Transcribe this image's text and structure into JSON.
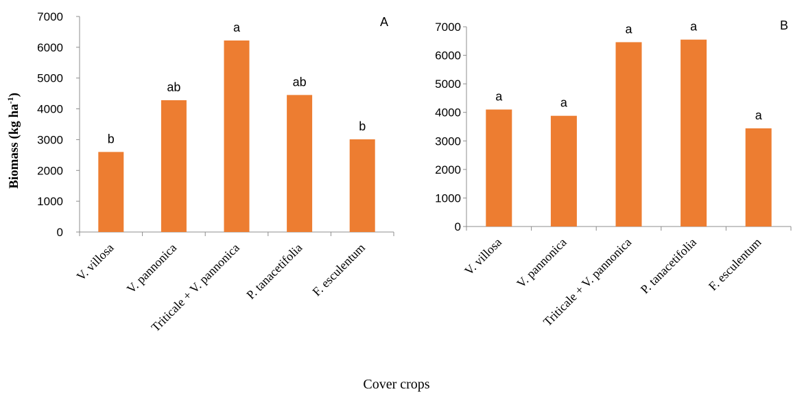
{
  "chart_data": [
    {
      "type": "bar",
      "panel": "A",
      "categories": [
        "V. villosa",
        "V. pannonica",
        "Triticale + V. pannonica",
        "P. tanacetifolia",
        "F. esculentum"
      ],
      "values": [
        2600,
        4280,
        6220,
        4450,
        3010
      ],
      "letters": [
        "b",
        "ab",
        "a",
        "ab",
        "b"
      ],
      "ylim": [
        0,
        7000
      ],
      "yticks": [
        0,
        1000,
        2000,
        3000,
        4000,
        5000,
        6000,
        7000
      ],
      "ylabel_main": "Biomass (kg ha",
      "ylabel_sup": "-1",
      "ylabel_end": ")",
      "bar_color": "#ED7D31",
      "grid": false
    },
    {
      "type": "bar",
      "panel": "B",
      "categories": [
        "V. villosa",
        "V. pannonica",
        "Triticale + V. pannonica",
        "P. tanacetifolia",
        "F. esculentum"
      ],
      "values": [
        4100,
        3880,
        6460,
        6550,
        3440
      ],
      "letters": [
        "a",
        "a",
        "a",
        "a",
        "a"
      ],
      "ylim": [
        0,
        7000
      ],
      "yticks": [
        0,
        1000,
        2000,
        3000,
        4000,
        5000,
        6000,
        7000
      ],
      "bar_color": "#ED7D31",
      "grid": false
    }
  ],
  "xlabel": "Cover crops"
}
